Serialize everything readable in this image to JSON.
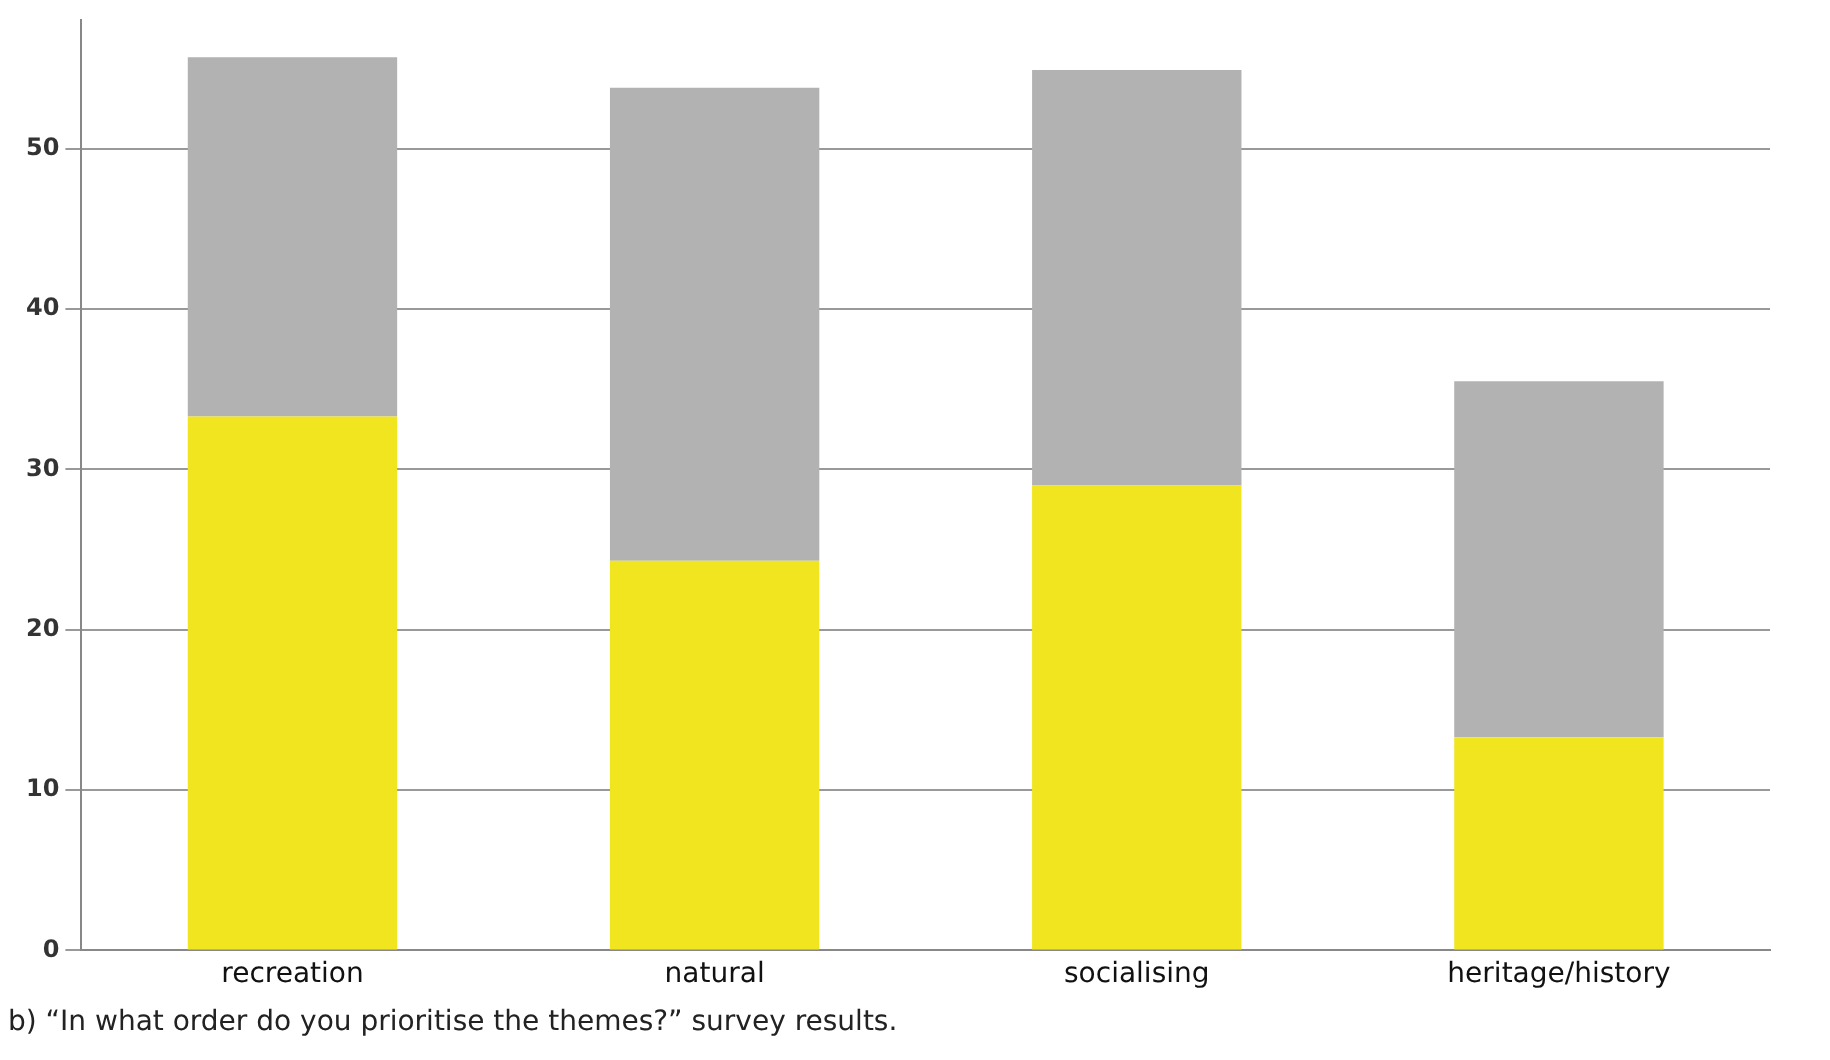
{
  "chart_data": {
    "type": "bar",
    "stacked": true,
    "categories": [
      "recreation",
      "natural",
      "socialising",
      "heritage/history"
    ],
    "series": [
      {
        "color": "#f0e51e",
        "values": [
          33.3,
          24.3,
          29.0,
          13.3
        ]
      },
      {
        "color": "#b2b2b2",
        "values": [
          22.4,
          29.5,
          25.9,
          22.2
        ]
      }
    ],
    "ylim": [
      0,
      58
    ],
    "yticks": [
      0,
      10,
      20,
      30,
      40,
      50
    ],
    "grid": "y",
    "legend": false,
    "annotations": [
      "b)  “In what order do you prioritise the themes?” survey results."
    ]
  }
}
